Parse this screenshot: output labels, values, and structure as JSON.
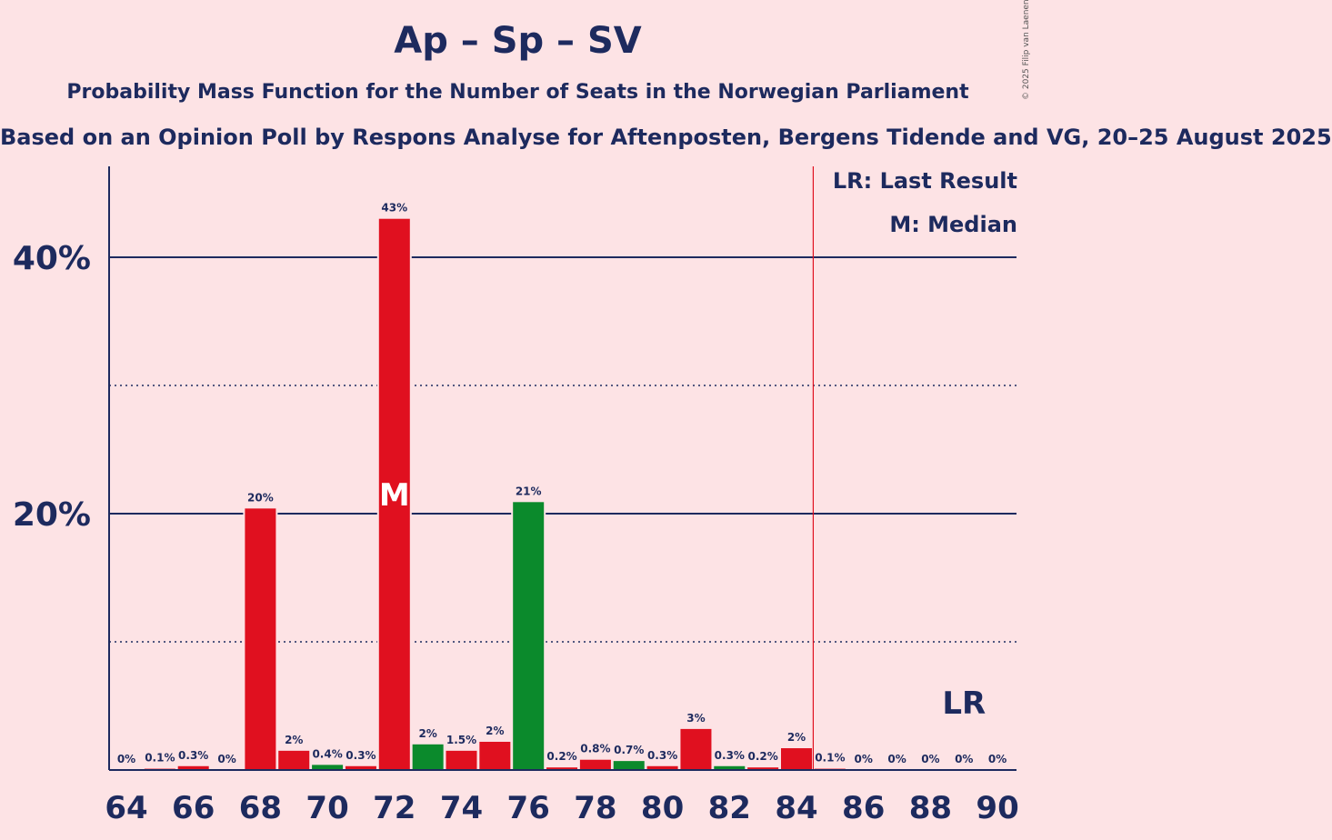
{
  "title": "Ap – Sp – SV",
  "subtitle": "Probability Mass Function for the Number of Seats in the Norwegian Parliament",
  "subtitle2": "Based on an Opinion Poll by Respons Analyse for Aftenposten, Bergens Tidende and VG, 20–25 August 2025",
  "copyright": "© 2025 Filip van Laenen",
  "legend": {
    "last_result": "LR: Last Result",
    "median": "M: Median"
  },
  "colors": {
    "background": "#fde3e5",
    "axis": "#1d2a5e",
    "red": "#e0101f",
    "green": "#0b8a2c",
    "lr_line": "#e0101f"
  },
  "chart_data": {
    "type": "bar",
    "x": [
      64,
      65,
      66,
      67,
      68,
      69,
      70,
      71,
      72,
      73,
      74,
      75,
      76,
      77,
      78,
      79,
      80,
      81,
      82,
      83,
      84,
      85,
      86,
      87,
      88,
      89,
      90
    ],
    "values": [
      0,
      0.1,
      0.3,
      0,
      20.4,
      1.5,
      0.4,
      0.3,
      43,
      2,
      1.5,
      2.2,
      20.9,
      0.2,
      0.8,
      0.7,
      0.3,
      3.2,
      0.3,
      0.2,
      1.7,
      0.1,
      0,
      0,
      0,
      0,
      0
    ],
    "labels": [
      "0%",
      "0.1%",
      "0.3%",
      "0%",
      "20%",
      "2%",
      "0.4%",
      "0.3%",
      "43%",
      "2%",
      "1.5%",
      "2%",
      "21%",
      "0.2%",
      "0.8%",
      "0.7%",
      "0.3%",
      "3%",
      "0.3%",
      "0.2%",
      "2%",
      "0.1%",
      "0%",
      "0%",
      "0%",
      "0%",
      "0%"
    ],
    "bar_colors": [
      "red",
      "red",
      "red",
      "red",
      "red",
      "red",
      "green",
      "red",
      "red",
      "green",
      "red",
      "red",
      "green",
      "red",
      "red",
      "green",
      "red",
      "red",
      "green",
      "red",
      "red",
      "red",
      "red",
      "red",
      "red",
      "red",
      "red"
    ],
    "x_ticks": [
      64,
      66,
      68,
      70,
      72,
      74,
      76,
      78,
      80,
      82,
      84,
      86,
      88,
      90
    ],
    "y_ticks": [
      {
        "value": 20,
        "label": "20%"
      },
      {
        "value": 40,
        "label": "40%"
      }
    ],
    "y_gridlines_minor": [
      10,
      30
    ],
    "ylim": [
      0,
      47
    ],
    "xlim": [
      63.5,
      90.5
    ],
    "median": 72,
    "median_label": "M",
    "last_result": 89,
    "last_result_label": "LR",
    "majority_line": 84.5
  }
}
